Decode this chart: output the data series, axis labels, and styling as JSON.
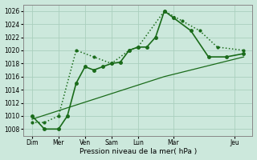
{
  "xlabel": "Pression niveau de la mer( hPa )",
  "background_color": "#cce8dc",
  "grid_color": "#aacfbe",
  "line_color": "#1a6b1a",
  "ylim": [
    1007,
    1027
  ],
  "yticks": [
    1008,
    1010,
    1012,
    1014,
    1016,
    1018,
    1020,
    1022,
    1024,
    1026
  ],
  "xlim": [
    0,
    13.0
  ],
  "xtick_labels": [
    "Dim",
    "Mer",
    "Ven",
    "Sam",
    "Lun",
    "Mar",
    "Jeu"
  ],
  "xtick_positions": [
    0.5,
    2.0,
    3.5,
    5.0,
    6.5,
    8.5,
    12.0
  ],
  "series1_x": [
    0.5,
    1.2,
    2.0,
    2.5,
    3.0,
    3.5,
    4.0,
    4.5,
    5.0,
    5.5,
    6.0,
    6.5,
    7.0,
    7.5,
    8.0,
    8.5,
    9.5,
    10.5,
    11.5,
    12.5
  ],
  "series1_y": [
    1010,
    1008,
    1008,
    1010,
    1015,
    1017.5,
    1017,
    1017.5,
    1018,
    1018.2,
    1020,
    1020.5,
    1020.5,
    1022,
    1026,
    1025,
    1023,
    1019,
    1019,
    1019.5
  ],
  "series2_x": [
    0.5,
    1.2,
    2.0,
    3.0,
    4.0,
    5.0,
    6.0,
    6.5,
    8.0,
    9.0,
    10.0,
    11.0,
    12.5
  ],
  "series2_y": [
    1009,
    1009,
    1010,
    1020,
    1019,
    1018,
    1020,
    1020.5,
    1026,
    1024.5,
    1023,
    1020.5,
    1020
  ],
  "series3_x": [
    0.5,
    8.0,
    12.5
  ],
  "series3_y": [
    1009.5,
    1016,
    1019
  ]
}
